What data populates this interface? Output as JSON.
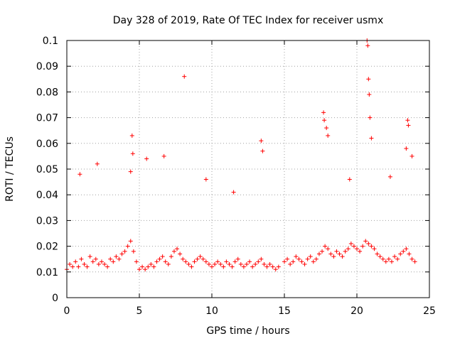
{
  "chart_data": {
    "type": "scatter",
    "title": "Day 328 of 2019, Rate Of TEC Index for receiver usmx",
    "xlabel": "GPS time / hours",
    "ylabel": "ROTI / TECUs",
    "xlim": [
      0,
      25
    ],
    "ylim": [
      0,
      0.1
    ],
    "x_ticks": [
      {
        "value": 0,
        "label": "0"
      },
      {
        "value": 5,
        "label": "5"
      },
      {
        "value": 10,
        "label": "10"
      },
      {
        "value": 15,
        "label": "15"
      },
      {
        "value": 20,
        "label": "20"
      },
      {
        "value": 25,
        "label": "25"
      }
    ],
    "y_ticks": [
      {
        "value": 0,
        "label": "0"
      },
      {
        "value": 0.01,
        "label": "0.01"
      },
      {
        "value": 0.02,
        "label": "0.02"
      },
      {
        "value": 0.03,
        "label": "0.03"
      },
      {
        "value": 0.04,
        "label": "0.04"
      },
      {
        "value": 0.05,
        "label": "0.05"
      },
      {
        "value": 0.06,
        "label": "0.06"
      },
      {
        "value": 0.07,
        "label": "0.07"
      },
      {
        "value": 0.08,
        "label": "0.08"
      },
      {
        "value": 0.09,
        "label": "0.09"
      },
      {
        "value": 0.1,
        "label": "0.1"
      }
    ],
    "grid": true,
    "marker": "plus",
    "marker_color": "#ff0000",
    "series": [
      {
        "name": "ROTI",
        "x": [
          0.0,
          0.2,
          0.4,
          0.6,
          0.8,
          1.0,
          1.2,
          1.4,
          1.6,
          1.8,
          2.0,
          2.2,
          2.4,
          2.6,
          2.8,
          3.0,
          3.2,
          3.4,
          3.6,
          3.8,
          4.0,
          4.2,
          4.4,
          4.6,
          4.8,
          5.0,
          5.2,
          5.4,
          5.6,
          5.8,
          6.0,
          6.2,
          6.4,
          6.6,
          6.8,
          7.0,
          7.2,
          7.4,
          7.6,
          7.8,
          8.0,
          8.2,
          8.4,
          8.6,
          8.8,
          9.0,
          9.2,
          9.4,
          9.6,
          9.8,
          10.0,
          10.2,
          10.4,
          10.6,
          10.8,
          11.0,
          11.2,
          11.4,
          11.6,
          11.8,
          12.0,
          12.2,
          12.4,
          12.6,
          12.8,
          13.0,
          13.2,
          13.4,
          13.6,
          13.8,
          14.0,
          14.2,
          14.4,
          14.6,
          15.0,
          15.2,
          15.4,
          15.6,
          15.8,
          16.0,
          16.2,
          16.4,
          16.6,
          16.8,
          17.0,
          17.2,
          17.4,
          17.6,
          17.8,
          18.0,
          18.2,
          18.4,
          18.6,
          18.8,
          19.0,
          19.2,
          19.4,
          19.6,
          19.8,
          20.0,
          20.2,
          20.4,
          20.6,
          20.8,
          21.0,
          21.2,
          21.4,
          21.6,
          21.8,
          22.0,
          22.2,
          22.4,
          22.6,
          22.8,
          23.0,
          23.2,
          23.4,
          23.6,
          23.8,
          24.0,
          4.5,
          4.55,
          4.4,
          8.1,
          13.4,
          13.5,
          17.7,
          17.75,
          17.9,
          18.0,
          20.7,
          20.75,
          20.8,
          20.85,
          20.9,
          21.0,
          23.4,
          23.5,
          23.55,
          23.8,
          6.7,
          2.1,
          0.9,
          5.5,
          9.6,
          11.5,
          19.5,
          22.3
        ],
        "y": [
          0.011,
          0.013,
          0.012,
          0.014,
          0.012,
          0.015,
          0.013,
          0.012,
          0.016,
          0.014,
          0.015,
          0.013,
          0.014,
          0.013,
          0.012,
          0.015,
          0.014,
          0.016,
          0.015,
          0.017,
          0.018,
          0.02,
          0.022,
          0.018,
          0.014,
          0.011,
          0.012,
          0.011,
          0.012,
          0.013,
          0.012,
          0.014,
          0.015,
          0.016,
          0.014,
          0.013,
          0.016,
          0.018,
          0.019,
          0.017,
          0.015,
          0.014,
          0.013,
          0.012,
          0.014,
          0.015,
          0.016,
          0.015,
          0.014,
          0.013,
          0.012,
          0.013,
          0.014,
          0.013,
          0.012,
          0.014,
          0.013,
          0.012,
          0.014,
          0.015,
          0.013,
          0.012,
          0.013,
          0.014,
          0.012,
          0.013,
          0.014,
          0.015,
          0.013,
          0.012,
          0.013,
          0.012,
          0.011,
          0.012,
          0.014,
          0.015,
          0.013,
          0.014,
          0.016,
          0.015,
          0.014,
          0.013,
          0.015,
          0.016,
          0.014,
          0.015,
          0.017,
          0.018,
          0.02,
          0.019,
          0.017,
          0.016,
          0.018,
          0.017,
          0.016,
          0.018,
          0.019,
          0.021,
          0.02,
          0.019,
          0.018,
          0.02,
          0.022,
          0.021,
          0.02,
          0.019,
          0.017,
          0.016,
          0.015,
          0.014,
          0.015,
          0.014,
          0.016,
          0.015,
          0.017,
          0.018,
          0.019,
          0.017,
          0.015,
          0.014,
          0.063,
          0.056,
          0.049,
          0.086,
          0.061,
          0.057,
          0.072,
          0.069,
          0.066,
          0.063,
          0.1,
          0.098,
          0.085,
          0.079,
          0.07,
          0.062,
          0.058,
          0.069,
          0.067,
          0.055,
          0.055,
          0.052,
          0.048,
          0.054,
          0.046,
          0.041,
          0.046,
          0.047
        ]
      }
    ]
  }
}
